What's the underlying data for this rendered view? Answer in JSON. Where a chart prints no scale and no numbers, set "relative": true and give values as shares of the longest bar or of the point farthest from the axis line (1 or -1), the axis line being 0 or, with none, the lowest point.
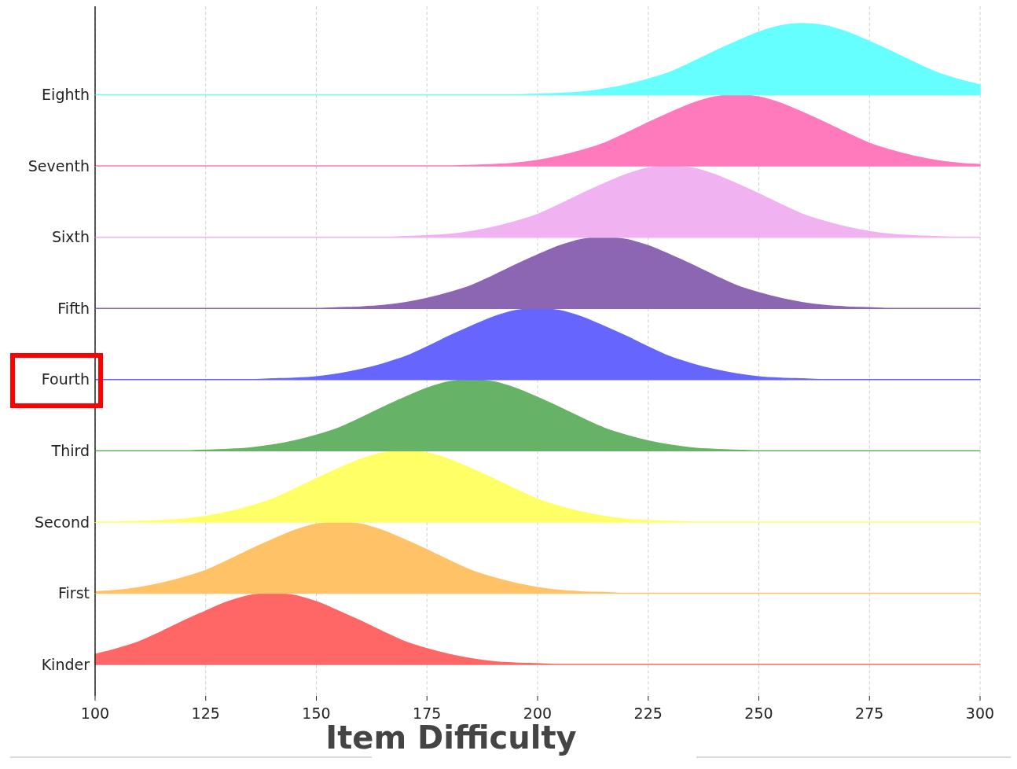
{
  "chart_data": [
    {
      "type": "area",
      "relative": true,
      "grid": "x",
      "tick_labels": false,
      "xlim": [
        100,
        300
      ],
      "xticks": [
        100,
        125,
        150,
        175,
        200,
        225,
        250,
        275,
        300
      ],
      "x": [
        100,
        105,
        110,
        115,
        120,
        125,
        130,
        135,
        140,
        145,
        150,
        155,
        160,
        165,
        170,
        175,
        180,
        185,
        190,
        195,
        200,
        205,
        210,
        215,
        220,
        225,
        230,
        235,
        240,
        245,
        250,
        255,
        260,
        265,
        270,
        275,
        280,
        285,
        290,
        295,
        300
      ],
      "series": [
        {
          "name": "Eighth",
          "color": "#66ffff",
          "values": [
            0,
            0,
            0,
            0,
            0,
            0,
            0,
            0,
            0,
            0,
            0,
            0,
            0,
            0,
            0,
            0,
            0,
            0,
            0,
            0,
            0.01,
            0.02,
            0.04,
            0.08,
            0.14,
            0.22,
            0.32,
            0.46,
            0.61,
            0.75,
            0.88,
            0.97,
            1,
            0.97,
            0.88,
            0.75,
            0.61,
            0.46,
            0.32,
            0.22,
            0.14
          ]
        }
      ]
    },
    {
      "type": "area",
      "relative": true,
      "grid": "x",
      "tick_labels": false,
      "xlim": [
        100,
        300
      ],
      "xticks": [
        100,
        125,
        150,
        175,
        200,
        225,
        250,
        275,
        300
      ],
      "x": [
        100,
        105,
        110,
        115,
        120,
        125,
        130,
        135,
        140,
        145,
        150,
        155,
        160,
        165,
        170,
        175,
        180,
        185,
        190,
        195,
        200,
        205,
        210,
        215,
        220,
        225,
        230,
        235,
        240,
        245,
        250,
        255,
        260,
        265,
        270,
        275,
        280,
        285,
        290,
        295,
        300
      ],
      "series": [
        {
          "name": "Seventh",
          "color": "#ff79bd",
          "values": [
            0,
            0,
            0,
            0,
            0,
            0,
            0,
            0,
            0,
            0,
            0,
            0,
            0,
            0,
            0,
            0,
            0,
            0.01,
            0.02,
            0.04,
            0.08,
            0.14,
            0.22,
            0.32,
            0.46,
            0.61,
            0.75,
            0.88,
            0.97,
            1,
            0.97,
            0.88,
            0.75,
            0.61,
            0.46,
            0.32,
            0.22,
            0.14,
            0.08,
            0.04,
            0.02
          ]
        }
      ]
    },
    {
      "type": "area",
      "relative": true,
      "grid": "x",
      "tick_labels": false,
      "xlim": [
        100,
        300
      ],
      "xticks": [
        100,
        125,
        150,
        175,
        200,
        225,
        250,
        275,
        300
      ],
      "x": [
        100,
        105,
        110,
        115,
        120,
        125,
        130,
        135,
        140,
        145,
        150,
        155,
        160,
        165,
        170,
        175,
        180,
        185,
        190,
        195,
        200,
        205,
        210,
        215,
        220,
        225,
        230,
        235,
        240,
        245,
        250,
        255,
        260,
        265,
        270,
        275,
        280,
        285,
        290,
        295,
        300
      ],
      "series": [
        {
          "name": "Sixth",
          "color": "#f0b2f0",
          "values": [
            0,
            0,
            0,
            0,
            0,
            0,
            0,
            0,
            0,
            0,
            0,
            0,
            0,
            0,
            0.01,
            0.02,
            0.04,
            0.08,
            0.14,
            0.22,
            0.32,
            0.46,
            0.61,
            0.75,
            0.88,
            0.97,
            1,
            0.97,
            0.88,
            0.75,
            0.61,
            0.46,
            0.32,
            0.22,
            0.14,
            0.08,
            0.04,
            0.02,
            0.01,
            0,
            0
          ]
        }
      ]
    },
    {
      "type": "area",
      "relative": true,
      "grid": "x",
      "tick_labels": false,
      "xlim": [
        100,
        300
      ],
      "xticks": [
        100,
        125,
        150,
        175,
        200,
        225,
        250,
        275,
        300
      ],
      "x": [
        100,
        105,
        110,
        115,
        120,
        125,
        130,
        135,
        140,
        145,
        150,
        155,
        160,
        165,
        170,
        175,
        180,
        185,
        190,
        195,
        200,
        205,
        210,
        215,
        220,
        225,
        230,
        235,
        240,
        245,
        250,
        255,
        260,
        265,
        270,
        275,
        280,
        285,
        290,
        295,
        300
      ],
      "series": [
        {
          "name": "Fifth",
          "color": "#8c66b2",
          "values": [
            0,
            0,
            0,
            0,
            0,
            0,
            0,
            0,
            0,
            0,
            0,
            0.01,
            0.02,
            0.04,
            0.08,
            0.14,
            0.22,
            0.32,
            0.46,
            0.61,
            0.75,
            0.88,
            0.97,
            1,
            0.97,
            0.88,
            0.75,
            0.61,
            0.46,
            0.32,
            0.22,
            0.14,
            0.08,
            0.04,
            0.02,
            0.01,
            0,
            0,
            0,
            0,
            0
          ]
        }
      ]
    },
    {
      "type": "area",
      "relative": true,
      "grid": "x",
      "tick_labels": false,
      "xlim": [
        100,
        300
      ],
      "xticks": [
        100,
        125,
        150,
        175,
        200,
        225,
        250,
        275,
        300
      ],
      "x": [
        100,
        105,
        110,
        115,
        120,
        125,
        130,
        135,
        140,
        145,
        150,
        155,
        160,
        165,
        170,
        175,
        180,
        185,
        190,
        195,
        200,
        205,
        210,
        215,
        220,
        225,
        230,
        235,
        240,
        245,
        250,
        255,
        260,
        265,
        270,
        275,
        280,
        285,
        290,
        295,
        300
      ],
      "series": [
        {
          "name": "Fourth",
          "color": "#6666ff",
          "values": [
            0,
            0,
            0,
            0,
            0,
            0,
            0,
            0,
            0.01,
            0.02,
            0.04,
            0.08,
            0.14,
            0.22,
            0.32,
            0.46,
            0.61,
            0.75,
            0.88,
            0.97,
            1,
            0.97,
            0.88,
            0.75,
            0.61,
            0.46,
            0.32,
            0.22,
            0.14,
            0.08,
            0.04,
            0.02,
            0.01,
            0,
            0,
            0,
            0,
            0,
            0,
            0,
            0
          ]
        }
      ]
    },
    {
      "type": "area",
      "relative": true,
      "grid": "x",
      "tick_labels": false,
      "xlim": [
        100,
        300
      ],
      "xticks": [
        100,
        125,
        150,
        175,
        200,
        225,
        250,
        275,
        300
      ],
      "x": [
        100,
        105,
        110,
        115,
        120,
        125,
        130,
        135,
        140,
        145,
        150,
        155,
        160,
        165,
        170,
        175,
        180,
        185,
        190,
        195,
        200,
        205,
        210,
        215,
        220,
        225,
        230,
        235,
        240,
        245,
        250,
        255,
        260,
        265,
        270,
        275,
        280,
        285,
        290,
        295,
        300
      ],
      "series": [
        {
          "name": "Third",
          "color": "#66b266",
          "values": [
            0,
            0,
            0,
            0,
            0,
            0.01,
            0.02,
            0.04,
            0.08,
            0.14,
            0.22,
            0.32,
            0.46,
            0.61,
            0.75,
            0.88,
            0.97,
            1,
            0.97,
            0.88,
            0.75,
            0.61,
            0.46,
            0.32,
            0.22,
            0.14,
            0.08,
            0.04,
            0.02,
            0.01,
            0,
            0,
            0,
            0,
            0,
            0,
            0,
            0,
            0,
            0,
            0
          ]
        }
      ]
    },
    {
      "type": "area",
      "relative": true,
      "grid": "x",
      "tick_labels": false,
      "xlim": [
        100,
        300
      ],
      "xticks": [
        100,
        125,
        150,
        175,
        200,
        225,
        250,
        275,
        300
      ],
      "x": [
        100,
        105,
        110,
        115,
        120,
        125,
        130,
        135,
        140,
        145,
        150,
        155,
        160,
        165,
        170,
        175,
        180,
        185,
        190,
        195,
        200,
        205,
        210,
        215,
        220,
        225,
        230,
        235,
        240,
        245,
        250,
        255,
        260,
        265,
        270,
        275,
        280,
        285,
        290,
        295,
        300
      ],
      "series": [
        {
          "name": "Second",
          "color": "#ffff66",
          "values": [
            0,
            0,
            0.01,
            0.02,
            0.04,
            0.08,
            0.14,
            0.22,
            0.32,
            0.46,
            0.61,
            0.75,
            0.88,
            0.97,
            1,
            0.97,
            0.88,
            0.75,
            0.61,
            0.46,
            0.32,
            0.22,
            0.14,
            0.08,
            0.04,
            0.02,
            0.01,
            0,
            0,
            0,
            0,
            0,
            0,
            0,
            0,
            0,
            0,
            0,
            0,
            0,
            0
          ]
        }
      ]
    },
    {
      "type": "area",
      "relative": true,
      "grid": "x",
      "tick_labels": false,
      "xlim": [
        100,
        300
      ],
      "xticks": [
        100,
        125,
        150,
        175,
        200,
        225,
        250,
        275,
        300
      ],
      "x": [
        100,
        105,
        110,
        115,
        120,
        125,
        130,
        135,
        140,
        145,
        150,
        155,
        160,
        165,
        170,
        175,
        180,
        185,
        190,
        195,
        200,
        205,
        210,
        215,
        220,
        225,
        230,
        235,
        240,
        245,
        250,
        255,
        260,
        265,
        270,
        275,
        280,
        285,
        290,
        295,
        300
      ],
      "series": [
        {
          "name": "First",
          "color": "#ffc266",
          "values": [
            0.02,
            0.04,
            0.08,
            0.14,
            0.22,
            0.32,
            0.46,
            0.61,
            0.75,
            0.88,
            0.97,
            1,
            0.97,
            0.88,
            0.75,
            0.61,
            0.46,
            0.32,
            0.22,
            0.14,
            0.08,
            0.04,
            0.02,
            0.01,
            0,
            0,
            0,
            0,
            0,
            0,
            0,
            0,
            0,
            0,
            0,
            0,
            0,
            0,
            0,
            0,
            0
          ]
        }
      ]
    },
    {
      "type": "area",
      "relative": true,
      "grid": "x",
      "tick_labels": "x",
      "xlabel": "Item Difficulty",
      "xlim": [
        100,
        300
      ],
      "xticks": [
        100,
        125,
        150,
        175,
        200,
        225,
        250,
        275,
        300
      ],
      "x": [
        100,
        105,
        110,
        115,
        120,
        125,
        130,
        135,
        140,
        145,
        150,
        155,
        160,
        165,
        170,
        175,
        180,
        185,
        190,
        195,
        200,
        205,
        210,
        215,
        220,
        225,
        230,
        235,
        240,
        245,
        250,
        255,
        260,
        265,
        270,
        275,
        280,
        285,
        290,
        295,
        300
      ],
      "series": [
        {
          "name": "Kinder",
          "color": "#ff6666",
          "values": [
            0.14,
            0.22,
            0.32,
            0.46,
            0.61,
            0.75,
            0.88,
            0.97,
            1,
            0.97,
            0.88,
            0.75,
            0.61,
            0.46,
            0.32,
            0.22,
            0.14,
            0.08,
            0.04,
            0.02,
            0.01,
            0,
            0,
            0,
            0,
            0,
            0,
            0,
            0,
            0,
            0,
            0,
            0,
            0,
            0,
            0,
            0,
            0,
            0,
            0,
            0
          ]
        }
      ]
    }
  ]
}
